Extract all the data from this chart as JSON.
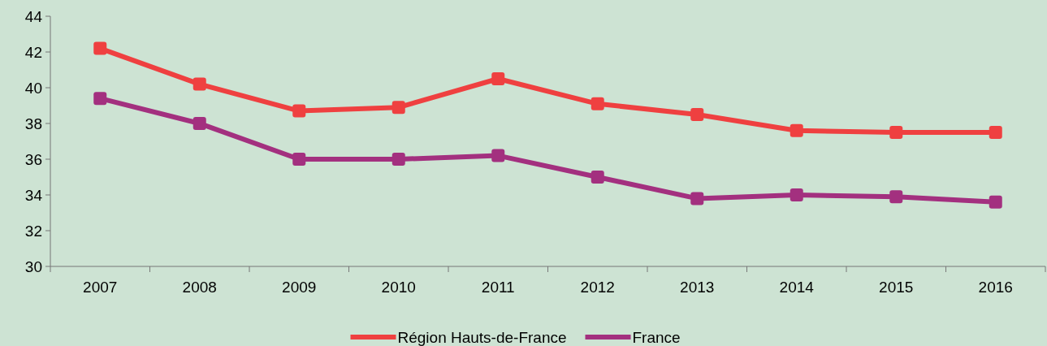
{
  "chart_data": {
    "type": "line",
    "categories": [
      "2007",
      "2008",
      "2009",
      "2010",
      "2011",
      "2012",
      "2013",
      "2014",
      "2015",
      "2016"
    ],
    "series": [
      {
        "name": "Région Hauts-de-France",
        "color": "#ef4040",
        "values": [
          42.2,
          40.2,
          38.7,
          38.9,
          40.5,
          39.1,
          38.5,
          37.6,
          37.5,
          37.5
        ]
      },
      {
        "name": "France",
        "color": "#a3307f",
        "values": [
          39.4,
          38.0,
          36.0,
          36.0,
          36.2,
          35.0,
          33.8,
          34.0,
          33.9,
          33.6
        ]
      }
    ],
    "ylim": [
      30,
      44
    ],
    "yticks": [
      30,
      32,
      34,
      36,
      38,
      40,
      42,
      44
    ],
    "grid": false,
    "legend": "bottom",
    "marker": "square",
    "line_style": "solid"
  }
}
